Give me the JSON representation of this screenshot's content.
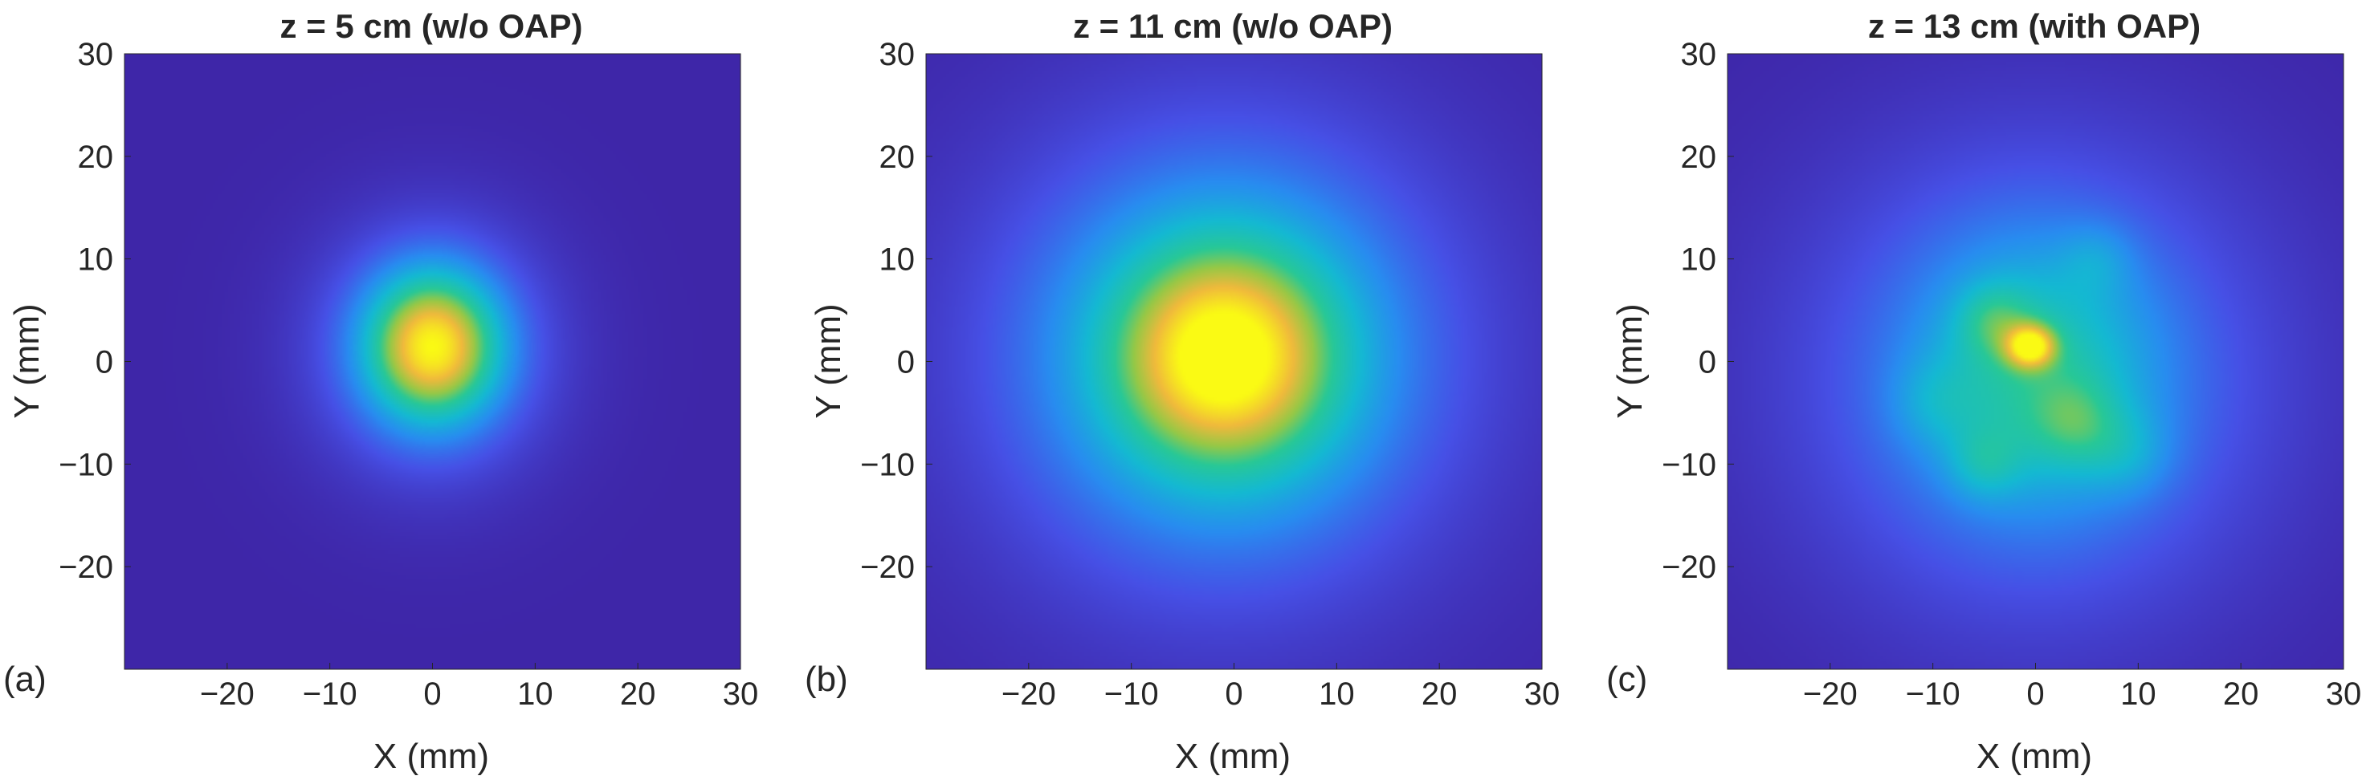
{
  "chart_data": [
    {
      "type": "heatmap",
      "panel_label": "(a)",
      "title": "z = 5 cm (w/o OAP)",
      "xlabel": "X (mm)",
      "ylabel": "Y (mm)",
      "xlim": [
        -30,
        30
      ],
      "ylim": [
        -30,
        30
      ],
      "xticks": [
        -20,
        -10,
        0,
        10,
        20,
        30
      ],
      "yticks": [
        30,
        20,
        10,
        0,
        -10,
        -20
      ],
      "colormap": "parula",
      "background_color": "#3e2a9c",
      "spots": [
        {
          "x": 0,
          "y": 1.5,
          "sigma_x": 4.5,
          "sigma_y": 5,
          "amp": 0.72
        },
        {
          "x": 0,
          "y": 1,
          "sigma_x": 8,
          "sigma_y": 8.5,
          "amp": 0.28
        }
      ]
    },
    {
      "type": "heatmap",
      "panel_label": "(b)",
      "title": "z = 11 cm (w/o OAP)",
      "xlabel": "X (mm)",
      "ylabel": "Y (mm)",
      "xlim": [
        -30,
        30
      ],
      "ylim": [
        -30,
        30
      ],
      "xticks": [
        -20,
        -10,
        0,
        10,
        20,
        30
      ],
      "yticks": [
        30,
        20,
        10,
        0,
        -10,
        -20
      ],
      "colormap": "parula",
      "background_color": "#3e2a9c",
      "spots": [
        {
          "x": -1,
          "y": 0.5,
          "sigma_x": 7,
          "sigma_y": 7,
          "amp": 0.55
        },
        {
          "x": -1,
          "y": 0.5,
          "sigma_x": 13,
          "sigma_y": 13,
          "amp": 0.45
        },
        {
          "x": -1,
          "y": 0,
          "sigma_x": 20,
          "sigma_y": 20,
          "amp": 0.12
        }
      ]
    },
    {
      "type": "heatmap",
      "panel_label": "(c)",
      "title": "z = 13 cm (with OAP)",
      "xlabel": "X (mm)",
      "ylabel": "Y (mm)",
      "xlim": [
        -30,
        30
      ],
      "ylim": [
        -30,
        30
      ],
      "xticks": [
        -20,
        -10,
        0,
        10,
        20,
        30
      ],
      "yticks": [
        30,
        20,
        10,
        0,
        -10,
        -20
      ],
      "colormap": "parula",
      "background_color": "#3e2a9c",
      "spots": [
        {
          "x": -0.5,
          "y": 1.5,
          "sigma_x": 1.6,
          "sigma_y": 1.4,
          "amp": 0.55
        },
        {
          "x": 0,
          "y": -1,
          "sigma_x": 8,
          "sigma_y": 9,
          "amp": 0.28
        },
        {
          "x": 0,
          "y": -2,
          "sigma_x": 16,
          "sigma_y": 16,
          "amp": 0.3
        },
        {
          "x": -4,
          "y": 4,
          "sigma_x": 2.5,
          "sigma_y": 2.5,
          "amp": 0.18
        },
        {
          "x": 4,
          "y": -6,
          "sigma_x": 3,
          "sigma_y": 3,
          "amp": 0.16
        },
        {
          "x": -5,
          "y": -10,
          "sigma_x": 2.5,
          "sigma_y": 2.5,
          "amp": 0.15
        },
        {
          "x": 9,
          "y": -9,
          "sigma_x": 3,
          "sigma_y": 3,
          "amp": 0.12
        },
        {
          "x": 6,
          "y": 10,
          "sigma_x": 2.5,
          "sigma_y": 2.5,
          "amp": 0.1
        },
        {
          "x": -10,
          "y": -4,
          "sigma_x": 3,
          "sigma_y": 3,
          "amp": 0.1
        }
      ]
    }
  ]
}
